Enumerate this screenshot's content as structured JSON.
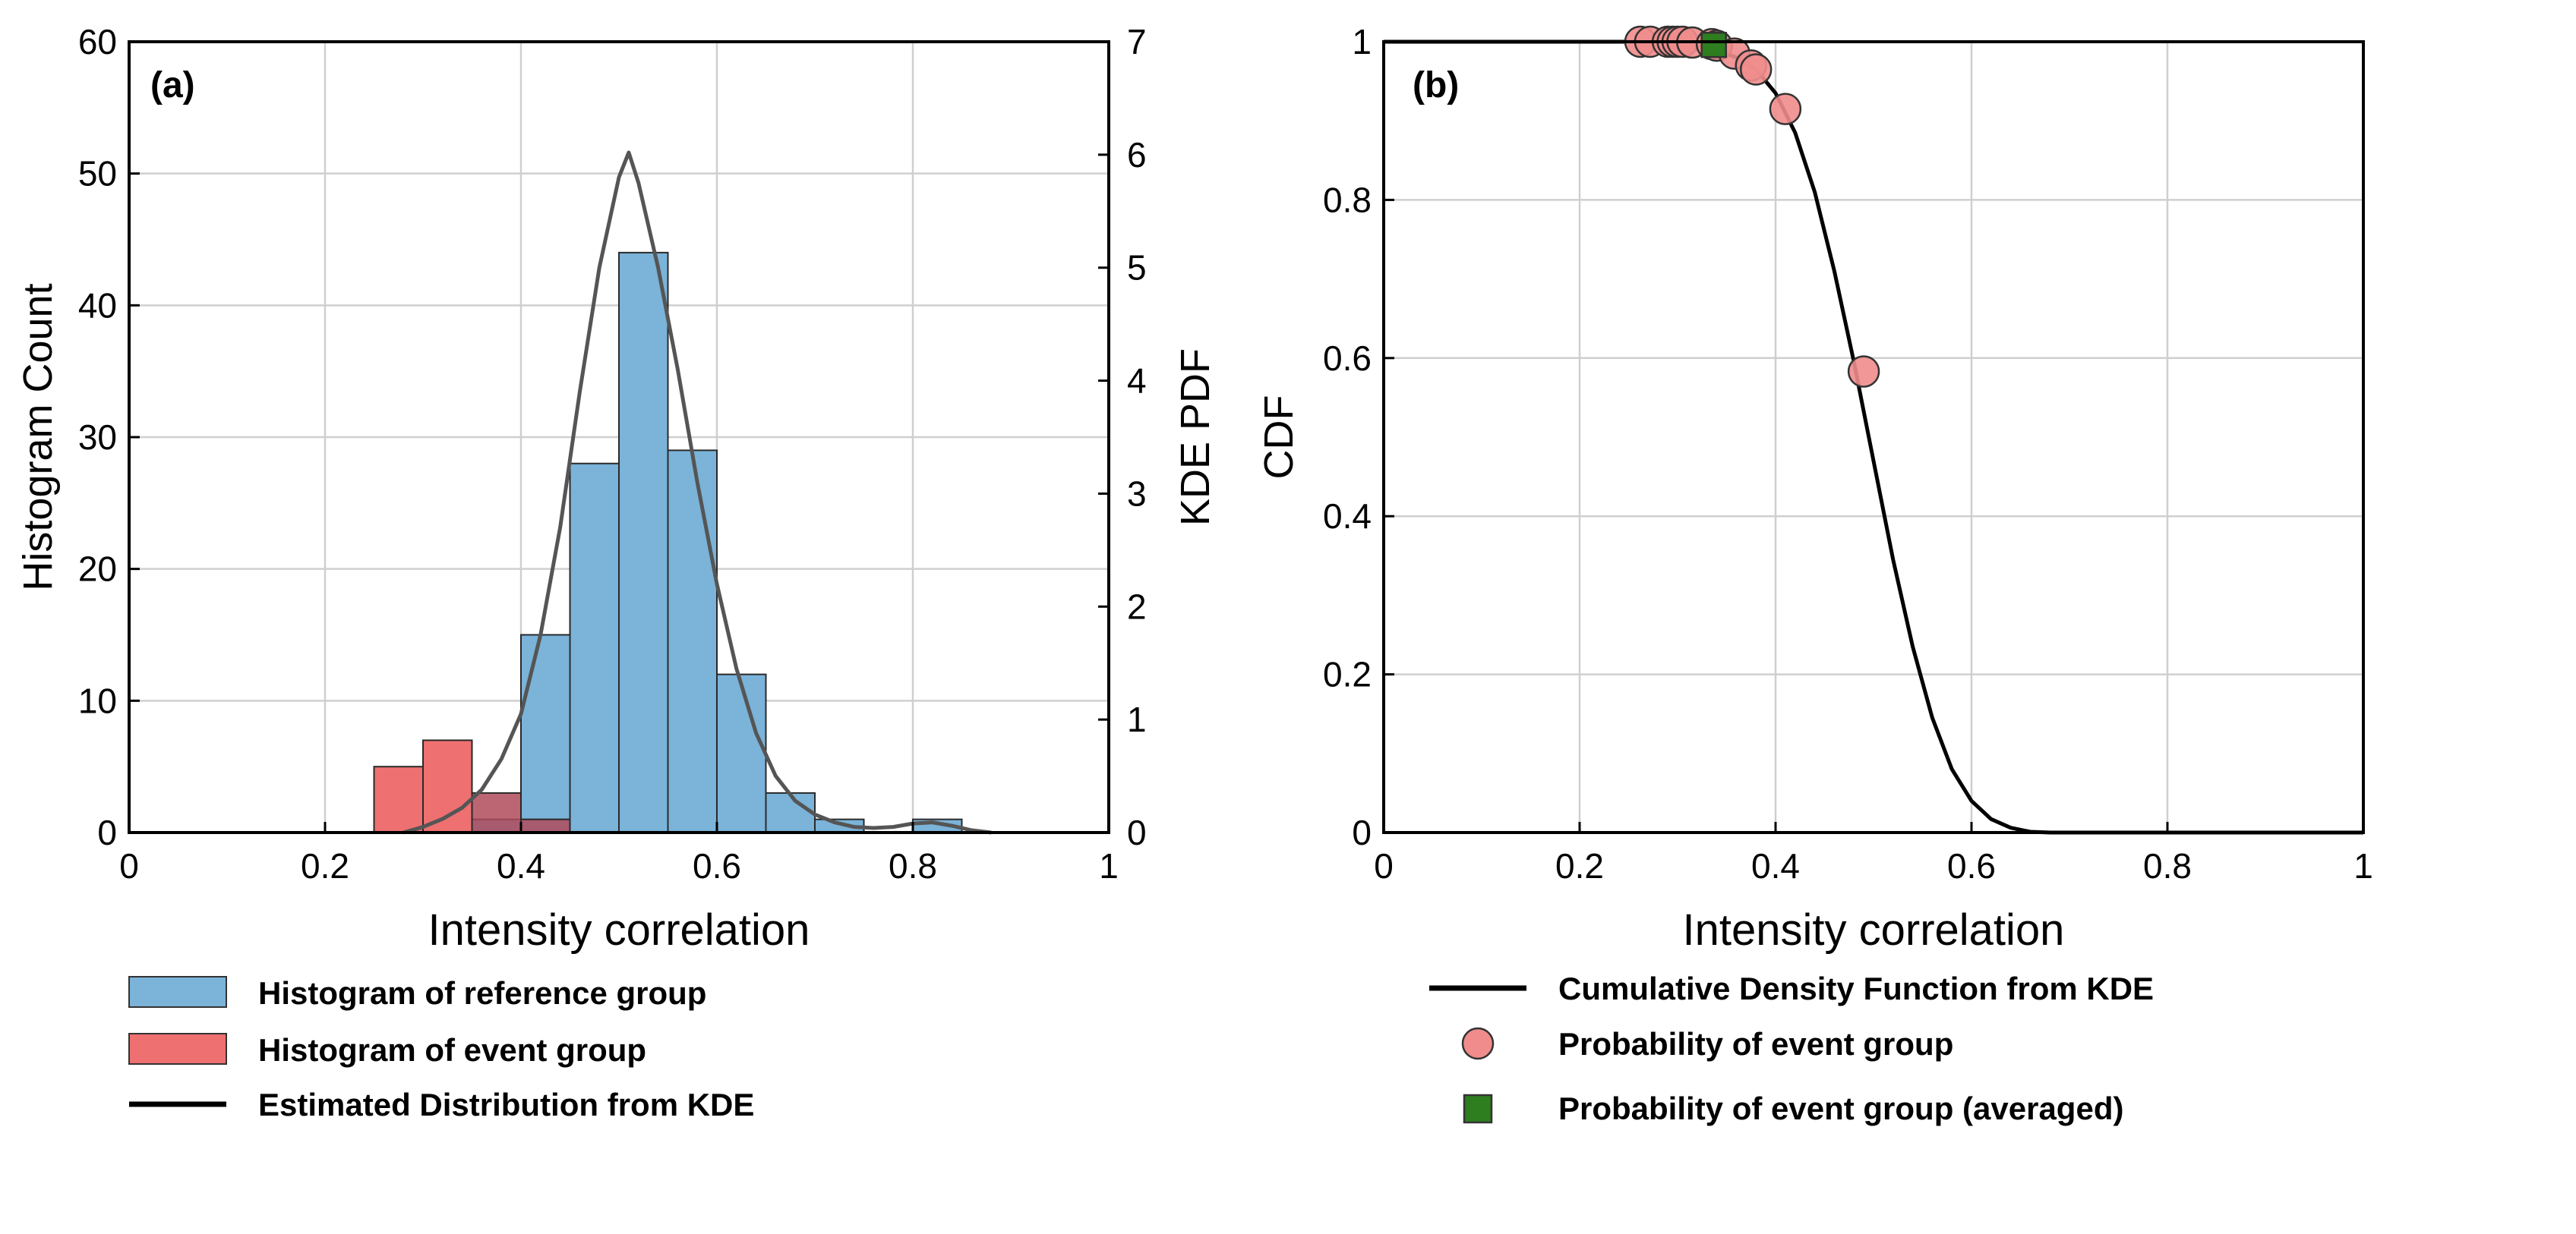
{
  "colors": {
    "reference_fill": "#7bb3d9",
    "event_fill": "#ee7070",
    "overlap_fill": "#b04a5a",
    "kde_line": "#555555",
    "cdf_line": "#000000",
    "event_marker": "#f08c8c",
    "averaged_marker": "#2e7d1f",
    "grid": "#cfcfcf",
    "axis": "#000000"
  },
  "chart_data": [
    {
      "type": "bar",
      "panel_label": "(a)",
      "xlabel": "Intensity correlation",
      "ylabel": "Histogram Count",
      "y2label": "KDE PDF",
      "xlim": [
        0,
        1
      ],
      "ylim": [
        0,
        60
      ],
      "y2lim": [
        0,
        7
      ],
      "xticks": [
        "0",
        "0.2",
        "0.4",
        "0.6",
        "0.8",
        "1"
      ],
      "yticks": [
        "0",
        "10",
        "20",
        "30",
        "40",
        "50",
        "60"
      ],
      "y2ticks": [
        "0",
        "1",
        "2",
        "3",
        "4",
        "5",
        "6",
        "7"
      ],
      "grid": true,
      "bin_width": 0.05,
      "series": [
        {
          "name": "Histogram of reference group",
          "bin_starts": [
            0.35,
            0.4,
            0.45,
            0.5,
            0.55,
            0.6,
            0.65,
            0.7,
            0.8
          ],
          "values": [
            1,
            15,
            28,
            44,
            29,
            12,
            3,
            1,
            1
          ]
        },
        {
          "name": "Histogram of event group",
          "bin_starts": [
            0.25,
            0.3,
            0.35,
            0.4
          ],
          "values": [
            5,
            7,
            3,
            1
          ]
        },
        {
          "name": "Estimated Distribution from KDE",
          "x": [
            0.28,
            0.3,
            0.32,
            0.34,
            0.36,
            0.38,
            0.4,
            0.42,
            0.44,
            0.46,
            0.48,
            0.5,
            0.51,
            0.52,
            0.54,
            0.56,
            0.58,
            0.6,
            0.62,
            0.64,
            0.66,
            0.68,
            0.7,
            0.72,
            0.74,
            0.76,
            0.78,
            0.8,
            0.82,
            0.84,
            0.86,
            0.88
          ],
          "y": [
            0.0,
            0.05,
            0.12,
            0.22,
            0.38,
            0.65,
            1.05,
            1.75,
            2.7,
            3.9,
            5.0,
            5.8,
            6.02,
            5.75,
            5.0,
            4.1,
            3.1,
            2.2,
            1.45,
            0.88,
            0.5,
            0.28,
            0.16,
            0.09,
            0.05,
            0.04,
            0.05,
            0.08,
            0.09,
            0.06,
            0.02,
            0.0
          ]
        }
      ],
      "legend": [
        {
          "label": "Histogram of reference group",
          "kind": "patch-reference"
        },
        {
          "label": "Histogram of event group",
          "kind": "patch-event"
        },
        {
          "label": "Estimated Distribution from KDE",
          "kind": "line"
        }
      ]
    },
    {
      "type": "line",
      "panel_label": "(b)",
      "xlabel": "Intensity correlation",
      "ylabel": "CDF",
      "xlim": [
        0,
        1
      ],
      "ylim": [
        0,
        1
      ],
      "xticks": [
        "0",
        "0.2",
        "0.4",
        "0.6",
        "0.8",
        "1"
      ],
      "yticks": [
        "0",
        "0.2",
        "0.4",
        "0.6",
        "0.8",
        "1"
      ],
      "grid": true,
      "series": [
        {
          "name": "Cumulative Density Function from KDE",
          "x": [
            0.0,
            0.26,
            0.3,
            0.34,
            0.36,
            0.38,
            0.4,
            0.42,
            0.44,
            0.46,
            0.48,
            0.5,
            0.52,
            0.54,
            0.56,
            0.58,
            0.6,
            0.62,
            0.64,
            0.66,
            0.68,
            1.0
          ],
          "y": [
            1.0,
            1.0,
            0.998,
            0.99,
            0.98,
            0.965,
            0.935,
            0.885,
            0.81,
            0.71,
            0.595,
            0.47,
            0.345,
            0.235,
            0.145,
            0.08,
            0.04,
            0.017,
            0.006,
            0.001,
            0.0,
            0.0
          ]
        },
        {
          "name": "Probability of event group",
          "x": [
            0.262,
            0.272,
            0.29,
            0.295,
            0.3,
            0.305,
            0.315,
            0.335,
            0.34,
            0.358,
            0.375,
            0.38,
            0.41,
            0.49
          ],
          "y": [
            1.0,
            1.0,
            1.0,
            1.0,
            1.0,
            1.0,
            0.999,
            0.997,
            0.995,
            0.985,
            0.97,
            0.965,
            0.915,
            0.583
          ]
        },
        {
          "name": "Probability of event group (averaged)",
          "x": [
            0.337
          ],
          "y": [
            0.996
          ]
        }
      ],
      "legend": [
        {
          "label": "Cumulative Density Function from KDE",
          "kind": "line"
        },
        {
          "label": "Probability of event group",
          "kind": "circle"
        },
        {
          "label": "Probability of event group (averaged)",
          "kind": "square"
        }
      ]
    }
  ]
}
